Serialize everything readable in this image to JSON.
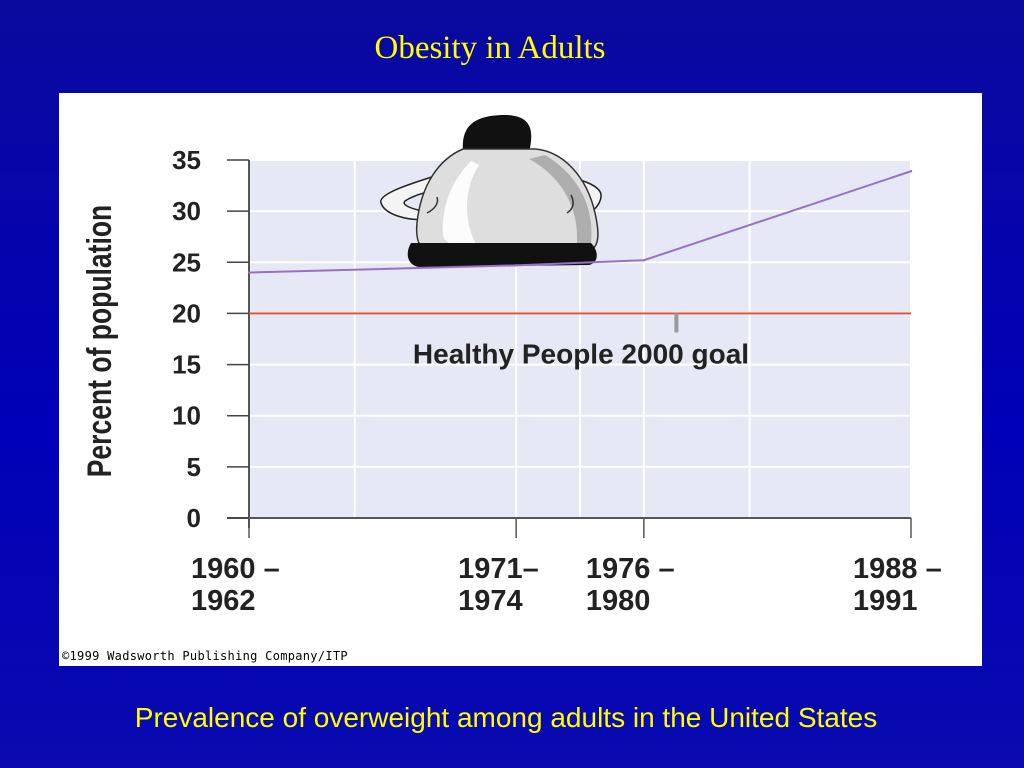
{
  "slide": {
    "title": "Obesity in Adults",
    "caption": "Prevalence of overweight among adults in the United States",
    "copyright": "©1999 Wadsworth Publishing Company/ITP"
  },
  "colors": {
    "background": "#0000b8",
    "title_text": "#ffff00",
    "plot_background": "#e6e8f5",
    "series_line": "#9b6fc6",
    "goal_line": "#e0502e"
  },
  "chart_data": {
    "type": "line",
    "ylabel": "Percent of population",
    "xlabel": "",
    "ylim": [
      0,
      35
    ],
    "yticks": [
      0,
      5,
      10,
      15,
      20,
      25,
      30,
      35
    ],
    "categories": [
      {
        "line1": "1960 –",
        "line2": "1962"
      },
      {
        "line1": "1971–",
        "line2": "1974"
      },
      {
        "line1": "1976 –",
        "line2": "1980"
      },
      {
        "line1": "1988 –",
        "line2": "1991"
      }
    ],
    "x_positions": [
      1961,
      1972.5,
      1978,
      1989.5
    ],
    "xlim": [
      1961,
      1989.5
    ],
    "series": [
      {
        "values": [
          24,
          24.7,
          25.2,
          33.9
        ]
      }
    ],
    "reference_line": {
      "value": 20,
      "label": "Healthy People 2000 goal"
    },
    "grid": true,
    "illustration": "overweight-person-figure"
  }
}
